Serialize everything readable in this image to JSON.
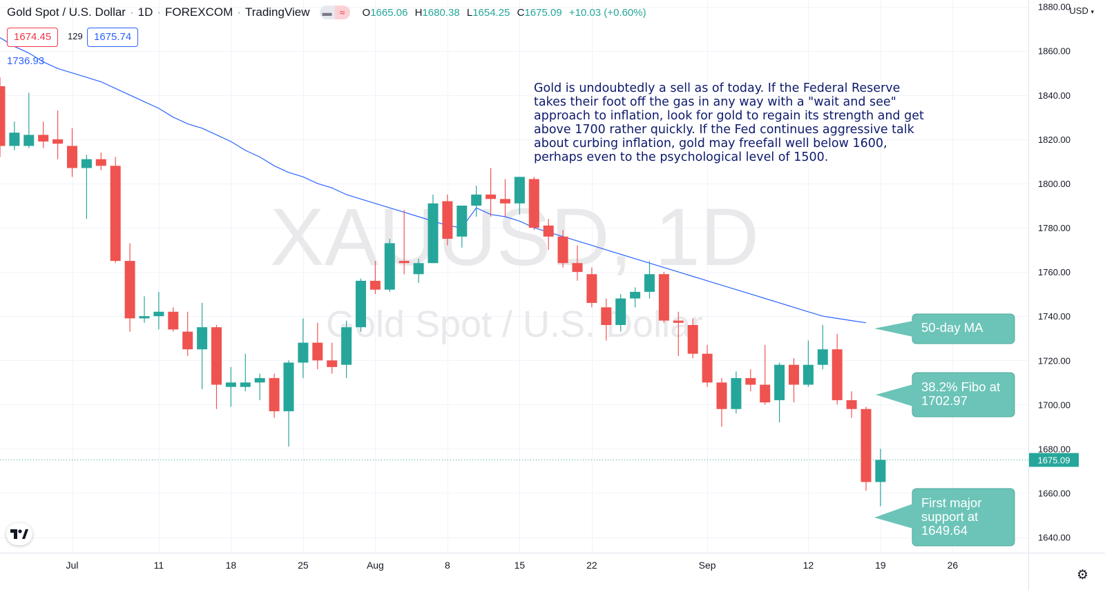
{
  "header": {
    "symbol": "Gold Spot / U.S. Dollar",
    "interval": "1D",
    "exchange": "FOREXCOM",
    "source": "TradingView",
    "ohlc": {
      "o": "1665.06",
      "h": "1680.38",
      "l": "1654.25",
      "c": "1675.09",
      "change": "+10.03 (+0.60%)"
    },
    "ohlc_labels": {
      "o": "O",
      "h": "H",
      "l": "L",
      "c": "C"
    }
  },
  "trade": {
    "sell_price": "1674.45",
    "spread": "129",
    "buy_price": "1675.74"
  },
  "indicator": {
    "ma_value": "1736.93"
  },
  "currency": "USD",
  "commentary": "Gold is undoubtedly a sell as of today.  If the Federal Reserve\ntakes their foot off the gas in any way with a \"wait and see\"\napproach to inflation, look for gold to regain its strength and get\nabove 1700 rather quickly.  If the Fed continues aggressive talk\nabout curbing inflation, gold may freefall well below 1600,\nperhaps even to the psychological level of 1500.",
  "callouts": [
    {
      "text": "50-day MA"
    },
    {
      "text": "38.2% Fibo at\n1702.97"
    },
    {
      "text": "First major\nsupport at\n1649.64"
    }
  ],
  "watermark": {
    "line1": "XAUUSD, 1D",
    "line2": "Gold Spot / U.S. Dollar"
  },
  "colors": {
    "up": "#26a69a",
    "down": "#ef5350",
    "ma": "#2962ff",
    "callout": "#6cc4b8",
    "commentary": "#0d1a6b"
  },
  "chart_data": {
    "type": "candlestick",
    "ylim": [
      1633,
      1883
    ],
    "y_ticks": [
      1640,
      1660,
      1680,
      1700,
      1720,
      1740,
      1760,
      1780,
      1800,
      1820,
      1840,
      1860,
      1880
    ],
    "y_tick_labels": [
      "1640.00",
      "1660.00",
      "1680.00",
      "1700.00",
      "1720.00",
      "1740.00",
      "1760.00",
      "1780.00",
      "1800.00",
      "1820.00",
      "1840.00",
      "1860.00",
      "1880.00"
    ],
    "x_tick_labels": [
      {
        "label": "Jul",
        "index": 5
      },
      {
        "label": "11",
        "index": 11
      },
      {
        "label": "18",
        "index": 16
      },
      {
        "label": "25",
        "index": 21
      },
      {
        "label": "Aug",
        "index": 26
      },
      {
        "label": "8",
        "index": 31
      },
      {
        "label": "15",
        "index": 36
      },
      {
        "label": "22",
        "index": 41
      },
      {
        "label": "Sep",
        "index": 49
      },
      {
        "label": "12",
        "index": 56
      },
      {
        "label": "19",
        "index": 61
      },
      {
        "label": "26",
        "index": 66
      }
    ],
    "last_price": "1675.09",
    "candles": [
      {
        "o": 1844,
        "h": 1848,
        "l": 1812,
        "c": 1817
      },
      {
        "o": 1817,
        "h": 1828,
        "l": 1815,
        "c": 1823
      },
      {
        "o": 1817,
        "h": 1841,
        "l": 1816,
        "c": 1822
      },
      {
        "o": 1822,
        "h": 1828,
        "l": 1816,
        "c": 1819
      },
      {
        "o": 1820,
        "h": 1833,
        "l": 1811,
        "c": 1818
      },
      {
        "o": 1817,
        "h": 1825,
        "l": 1803,
        "c": 1807
      },
      {
        "o": 1807,
        "h": 1813,
        "l": 1784,
        "c": 1811
      },
      {
        "o": 1811,
        "h": 1814,
        "l": 1806,
        "c": 1808
      },
      {
        "o": 1808,
        "h": 1812,
        "l": 1764,
        "c": 1765
      },
      {
        "o": 1765,
        "h": 1773,
        "l": 1733,
        "c": 1739
      },
      {
        "o": 1739,
        "h": 1749,
        "l": 1737,
        "c": 1740
      },
      {
        "o": 1740,
        "h": 1751,
        "l": 1734,
        "c": 1742
      },
      {
        "o": 1742,
        "h": 1744,
        "l": 1733,
        "c": 1734
      },
      {
        "o": 1733,
        "h": 1742,
        "l": 1722,
        "c": 1725
      },
      {
        "o": 1725,
        "h": 1746,
        "l": 1707,
        "c": 1735
      },
      {
        "o": 1735,
        "h": 1736,
        "l": 1698,
        "c": 1709
      },
      {
        "o": 1708,
        "h": 1717,
        "l": 1699,
        "c": 1710
      },
      {
        "o": 1708,
        "h": 1723,
        "l": 1706,
        "c": 1710
      },
      {
        "o": 1710,
        "h": 1714,
        "l": 1702,
        "c": 1712
      },
      {
        "o": 1712,
        "h": 1714,
        "l": 1694,
        "c": 1697
      },
      {
        "o": 1697,
        "h": 1720,
        "l": 1681,
        "c": 1719
      },
      {
        "o": 1719,
        "h": 1739,
        "l": 1712,
        "c": 1728
      },
      {
        "o": 1728,
        "h": 1737,
        "l": 1716,
        "c": 1720
      },
      {
        "o": 1720,
        "h": 1728,
        "l": 1714,
        "c": 1717
      },
      {
        "o": 1718,
        "h": 1738,
        "l": 1712,
        "c": 1735
      },
      {
        "o": 1735,
        "h": 1757,
        "l": 1733,
        "c": 1756
      },
      {
        "o": 1756,
        "h": 1765,
        "l": 1750,
        "c": 1752
      },
      {
        "o": 1752,
        "h": 1775,
        "l": 1751,
        "c": 1773
      },
      {
        "o": 1765,
        "h": 1788,
        "l": 1759,
        "c": 1764
      },
      {
        "o": 1759,
        "h": 1766,
        "l": 1755,
        "c": 1764
      },
      {
        "o": 1764,
        "h": 1795,
        "l": 1764,
        "c": 1791
      },
      {
        "o": 1792,
        "h": 1795,
        "l": 1772,
        "c": 1775
      },
      {
        "o": 1776,
        "h": 1790,
        "l": 1771,
        "c": 1790
      },
      {
        "o": 1790,
        "h": 1799,
        "l": 1785,
        "c": 1795
      },
      {
        "o": 1795,
        "h": 1807,
        "l": 1785,
        "c": 1793
      },
      {
        "o": 1793,
        "h": 1802,
        "l": 1785,
        "c": 1791
      },
      {
        "o": 1791,
        "h": 1803,
        "l": 1786,
        "c": 1803
      },
      {
        "o": 1802,
        "h": 1803,
        "l": 1779,
        "c": 1780
      },
      {
        "o": 1781,
        "h": 1784,
        "l": 1770,
        "c": 1776
      },
      {
        "o": 1776,
        "h": 1779,
        "l": 1762,
        "c": 1764
      },
      {
        "o": 1764,
        "h": 1772,
        "l": 1756,
        "c": 1760
      },
      {
        "o": 1759,
        "h": 1762,
        "l": 1744,
        "c": 1746
      },
      {
        "o": 1744,
        "h": 1748,
        "l": 1729,
        "c": 1736
      },
      {
        "o": 1736,
        "h": 1750,
        "l": 1733,
        "c": 1748
      },
      {
        "o": 1748,
        "h": 1753,
        "l": 1744,
        "c": 1751
      },
      {
        "o": 1751,
        "h": 1765,
        "l": 1748,
        "c": 1759
      },
      {
        "o": 1759,
        "h": 1760,
        "l": 1737,
        "c": 1738
      },
      {
        "o": 1738,
        "h": 1742,
        "l": 1722,
        "c": 1737
      },
      {
        "o": 1736,
        "h": 1739,
        "l": 1721,
        "c": 1723
      },
      {
        "o": 1723,
        "h": 1727,
        "l": 1708,
        "c": 1710
      },
      {
        "o": 1710,
        "h": 1712,
        "l": 1690,
        "c": 1698
      },
      {
        "o": 1698,
        "h": 1715,
        "l": 1696,
        "c": 1712
      },
      {
        "o": 1712,
        "h": 1716,
        "l": 1706,
        "c": 1709
      },
      {
        "o": 1709,
        "h": 1727,
        "l": 1700,
        "c": 1701
      },
      {
        "o": 1702,
        "h": 1719,
        "l": 1692,
        "c": 1718
      },
      {
        "o": 1718,
        "h": 1721,
        "l": 1701,
        "c": 1709
      },
      {
        "o": 1709,
        "h": 1729,
        "l": 1708,
        "c": 1718
      },
      {
        "o": 1718,
        "h": 1736,
        "l": 1716,
        "c": 1725
      },
      {
        "o": 1725,
        "h": 1732,
        "l": 1700,
        "c": 1702
      },
      {
        "o": 1702,
        "h": 1706,
        "l": 1694,
        "c": 1698
      },
      {
        "o": 1698,
        "h": 1699,
        "l": 1661,
        "c": 1665
      },
      {
        "o": 1665,
        "h": 1680,
        "l": 1654,
        "c": 1675
      }
    ],
    "ma": [
      1866,
      1862,
      1859,
      1855,
      1852,
      1850,
      1848,
      1846,
      1843,
      1840,
      1837,
      1834,
      1830,
      1827,
      1825,
      1822,
      1819,
      1815,
      1812,
      1808,
      1805,
      1803,
      1800,
      1798,
      1795,
      1793,
      1791,
      1789,
      1787,
      1785,
      1783,
      1781,
      1780,
      1789,
      1786,
      1785,
      1783,
      1780,
      1778,
      1776,
      1774,
      1772,
      1770,
      1768,
      1766,
      1764,
      1762,
      1760,
      1758,
      1756,
      1754,
      1752,
      1750,
      1748,
      1746,
      1744,
      1742,
      1740,
      1739,
      1738,
      1737
    ]
  }
}
